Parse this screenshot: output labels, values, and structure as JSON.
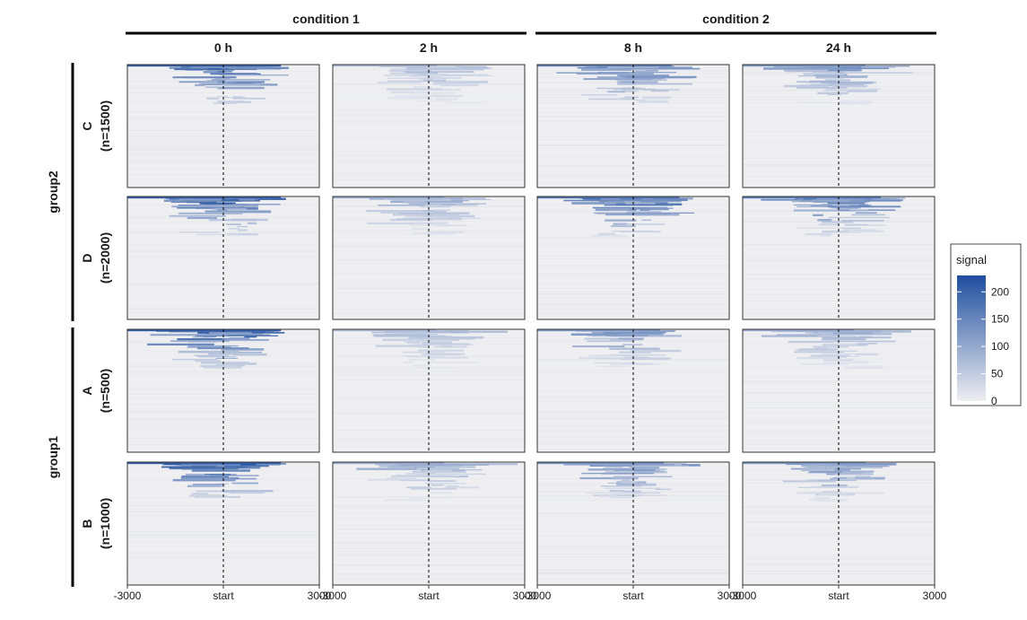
{
  "chart_data": {
    "type": "heatmap",
    "title": "",
    "column_groups": [
      {
        "label": "condition 1",
        "columns": [
          "0 h",
          "2 h"
        ]
      },
      {
        "label": "condition 2",
        "columns": [
          "8 h",
          "24 h"
        ]
      }
    ],
    "columns": [
      "0 h",
      "2 h",
      "8 h",
      "24 h"
    ],
    "row_groups": [
      {
        "label": "group2",
        "rows": [
          0,
          1
        ]
      },
      {
        "label": "group1",
        "rows": [
          2,
          3
        ]
      }
    ],
    "rows": [
      {
        "label": "C",
        "count_label": "(n=1500)"
      },
      {
        "label": "D",
        "count_label": "(n=2000)"
      },
      {
        "label": "A",
        "count_label": "(n=500)"
      },
      {
        "label": "B",
        "count_label": "(n=1000)"
      }
    ],
    "x_range": [
      -3000,
      3000
    ],
    "x_ticks": [
      {
        "value": -3000,
        "label": "-3000"
      },
      {
        "value": 0,
        "label": "start"
      },
      {
        "value": 3000,
        "label": "3000"
      }
    ],
    "reference_line_x": 0,
    "legend": {
      "title": "signal",
      "ticks": [
        0,
        50,
        100,
        150,
        200
      ],
      "range": [
        0,
        230
      ],
      "colors": [
        "#eeeef2",
        "#1f4e9e"
      ],
      "placement": "right"
    },
    "panel_peak_intensity": [
      [
        1.0,
        0.35,
        0.75,
        0.6
      ],
      [
        1.0,
        0.45,
        0.85,
        0.8
      ],
      [
        1.0,
        0.35,
        0.6,
        0.45
      ],
      [
        1.0,
        0.45,
        0.65,
        0.6
      ]
    ]
  }
}
